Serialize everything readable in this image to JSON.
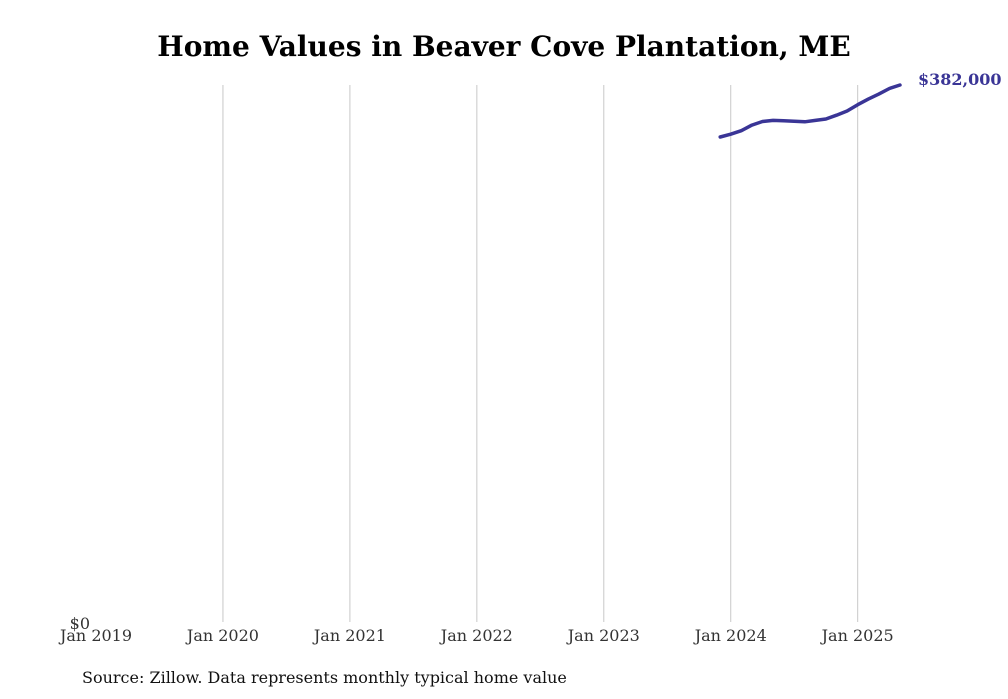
{
  "chart_data": {
    "type": "line",
    "title": "Home Values in Beaver Cove Plantation, ME",
    "source": "Source: Zillow. Data represents monthly typical home value",
    "x_ticks": [
      "Jan 2019",
      "Jan 2020",
      "Jan 2021",
      "Jan 2022",
      "Jan 2023",
      "Jan 2024",
      "Jan 2025"
    ],
    "y_ticks": [
      "$0"
    ],
    "ylim": [
      0,
      382000
    ],
    "xlim": [
      "2019-01",
      "2025-05"
    ],
    "grid": "vertical",
    "series_color": "#3a3596",
    "end_label": "$382,000",
    "series": [
      {
        "x": [
          "2023-12",
          "2024-01",
          "2024-02",
          "2024-03",
          "2024-04",
          "2024-05",
          "2024-06",
          "2024-07",
          "2024-08",
          "2024-09",
          "2024-10",
          "2024-11",
          "2024-12",
          "2025-01",
          "2025-02",
          "2025-03",
          "2025-04",
          "2025-05"
        ],
        "values": [
          345000,
          347000,
          349500,
          353500,
          356000,
          356800,
          356500,
          356200,
          355800,
          356800,
          357800,
          360500,
          363500,
          368000,
          372000,
          375500,
          379500,
          382000
        ]
      }
    ]
  }
}
